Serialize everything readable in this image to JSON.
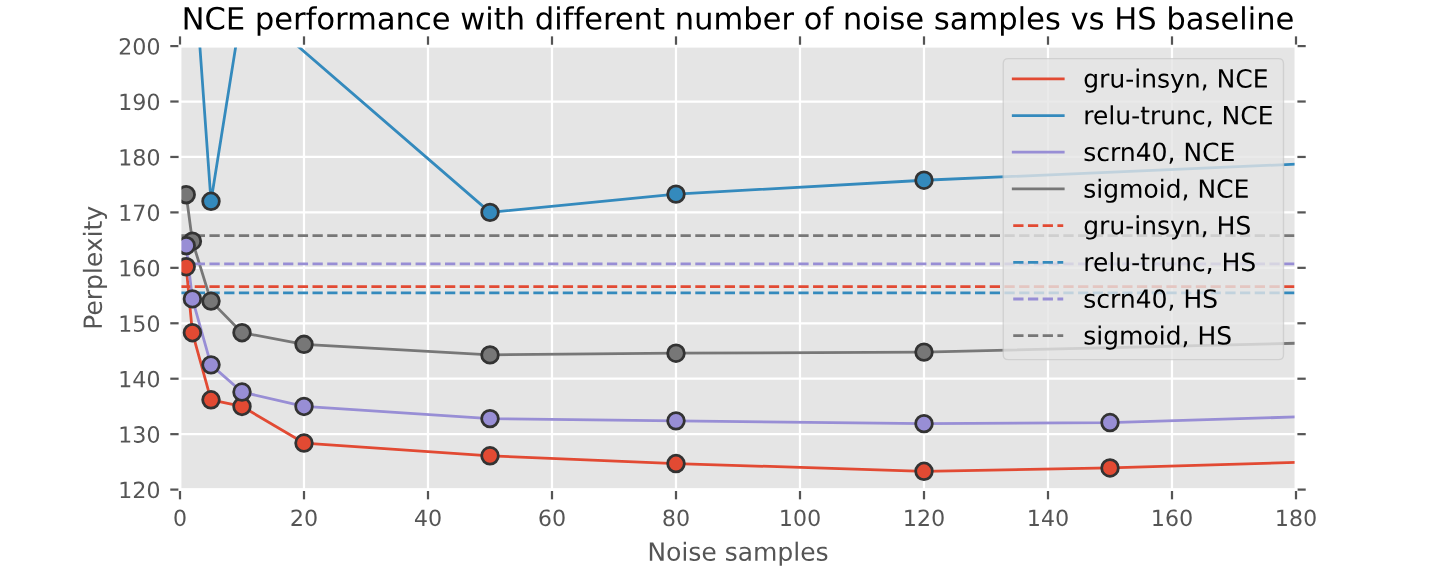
{
  "chart_data": {
    "type": "line",
    "title": "NCE performance with different number of noise samples vs HS baseline",
    "xlabel": "Noise samples",
    "ylabel": "Perplexity",
    "xlim": [
      0,
      180
    ],
    "xticks": [
      0,
      20,
      40,
      60,
      80,
      100,
      120,
      140,
      160,
      180
    ],
    "ylim": [
      120,
      200
    ],
    "yticks": [
      120,
      130,
      140,
      150,
      160,
      170,
      180,
      190,
      200
    ],
    "grid": true,
    "legend": "top right",
    "series": [
      {
        "name": "gru-insyn, NCE",
        "color": "#e24a33",
        "marker": "none",
        "line_style": "solid",
        "x": [
          1,
          2,
          5,
          10,
          20,
          50,
          80,
          120,
          150,
          180
        ],
        "values": [
          160.2,
          148.3,
          136.2,
          135.0,
          128.4,
          126.1,
          124.7,
          123.3,
          123.9,
          124.9
        ]
      },
      {
        "name": "relu-trunc, NCE",
        "color": "#348abd",
        "marker": "none",
        "line_style": "solid",
        "x": [
          3.2,
          5,
          9,
          14,
          19,
          50,
          80,
          120,
          180
        ],
        "values": [
          200,
          172.0,
          200,
          null,
          200,
          170.0,
          173.3,
          175.8,
          178.7
        ]
      },
      {
        "name": "scrn40, NCE",
        "color": "#988ed5",
        "marker": "none",
        "line_style": "solid",
        "x": [
          1,
          2,
          5,
          10,
          20,
          50,
          80,
          120,
          150,
          180
        ],
        "values": [
          164.0,
          154.4,
          142.5,
          137.6,
          135.0,
          132.8,
          132.4,
          131.9,
          132.1,
          133.1
        ]
      },
      {
        "name": "sigmoid, NCE",
        "color": "#777777",
        "marker": "none",
        "line_style": "solid",
        "x": [
          1,
          2,
          5,
          10,
          20,
          50,
          80,
          120,
          180
        ],
        "values": [
          173.2,
          164.8,
          154.0,
          148.3,
          146.2,
          144.3,
          144.6,
          144.8,
          146.4
        ]
      },
      {
        "name": "gru-insyn, HS",
        "color": "#e24a33",
        "marker": "none",
        "line_style": "dashed",
        "x": [
          0,
          180
        ],
        "values": [
          156.6,
          156.6
        ]
      },
      {
        "name": "relu-trunc, HS",
        "color": "#348abd",
        "marker": "none",
        "line_style": "dashed",
        "x": [
          0,
          180
        ],
        "values": [
          155.5,
          155.5
        ]
      },
      {
        "name": "scrn40, HS",
        "color": "#988ed5",
        "marker": "none",
        "line_style": "dashed",
        "x": [
          0,
          180
        ],
        "values": [
          160.7,
          160.7
        ]
      },
      {
        "name": "sigmoid, HS",
        "color": "#777777",
        "marker": "none",
        "line_style": "dashed",
        "x": [
          0,
          180
        ],
        "values": [
          165.8,
          165.8
        ]
      },
      {
        "type": "scatter",
        "color": "#e24a33",
        "marker": "circle",
        "x": [
          1,
          2,
          5,
          10,
          20,
          50,
          80,
          120,
          150
        ],
        "values": [
          160.2,
          148.3,
          136.2,
          135.0,
          128.4,
          126.1,
          124.7,
          123.3,
          123.9
        ]
      },
      {
        "type": "scatter",
        "color": "#348abd",
        "marker": "circle",
        "x": [
          5,
          50,
          80,
          120
        ],
        "values": [
          172.0,
          170.0,
          173.3,
          175.8
        ]
      },
      {
        "type": "scatter",
        "color": "#777777",
        "marker": "circle",
        "x": [
          1,
          2,
          5,
          10,
          20,
          50,
          80,
          120
        ],
        "values": [
          173.2,
          164.8,
          154.0,
          148.3,
          146.2,
          144.3,
          144.6,
          144.8
        ]
      },
      {
        "type": "scatter",
        "color": "#988ed5",
        "marker": "circle",
        "x": [
          1,
          2,
          5,
          10,
          20,
          50,
          80,
          120,
          150
        ],
        "values": [
          164.0,
          154.4,
          142.5,
          137.6,
          135.0,
          132.8,
          132.4,
          131.9,
          132.1
        ]
      }
    ]
  }
}
